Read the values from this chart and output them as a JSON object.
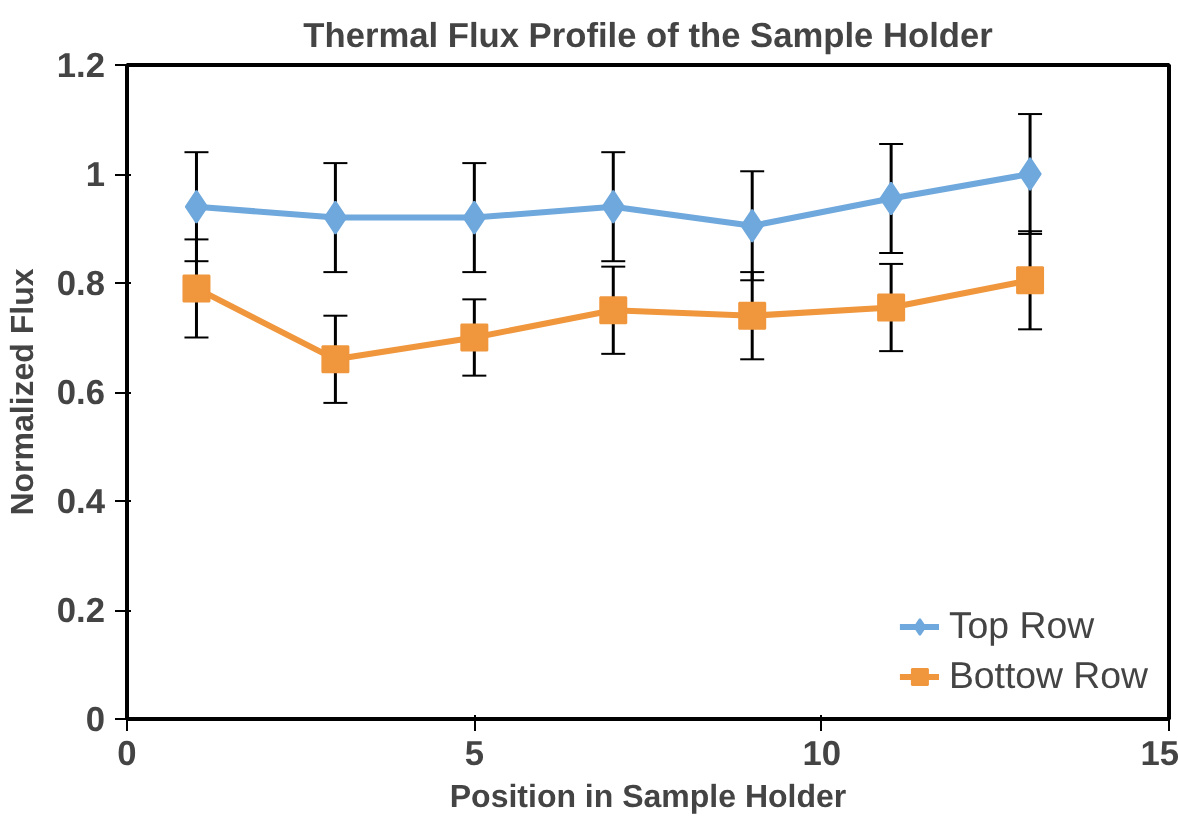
{
  "chart_data": {
    "type": "line",
    "title": "Thermal Flux Profile of the Sample Holder",
    "xlabel": "Position in Sample Holder",
    "ylabel": "Normalized Flux",
    "x": [
      1,
      3,
      5,
      7,
      9,
      11,
      13
    ],
    "series": [
      {
        "name": "Top Row",
        "color": "#6fa8dc",
        "marker": "diamond",
        "values": [
          0.94,
          0.92,
          0.92,
          0.94,
          0.905,
          0.955,
          1.0
        ],
        "errors": [
          0.1,
          0.1,
          0.1,
          0.1,
          0.1,
          0.1,
          0.11
        ]
      },
      {
        "name": "Bottow Row",
        "color": "#f0963c",
        "marker": "square",
        "values": [
          0.79,
          0.66,
          0.7,
          0.75,
          0.74,
          0.755,
          0.805
        ],
        "errors": [
          0.09,
          0.08,
          0.07,
          0.08,
          0.08,
          0.08,
          0.09
        ]
      }
    ],
    "xlim": [
      0,
      15
    ],
    "xticks": [
      0,
      5,
      10,
      15
    ],
    "ylim": [
      0,
      1.2
    ],
    "yticks": [
      0,
      0.2,
      0.4,
      0.6,
      0.8,
      1,
      1.2
    ],
    "grid": false,
    "legend": "bottom right"
  }
}
